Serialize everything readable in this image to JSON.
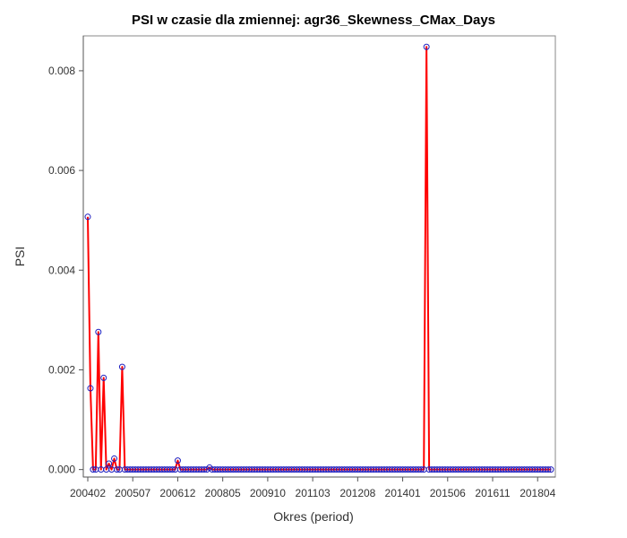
{
  "chart_data": {
    "type": "line",
    "title": "PSI w czasie dla zmiennej: agr36_Skewness_CMax_Days",
    "xlabel": "Okres (period)",
    "ylabel": "PSI",
    "ylim": [
      -0.00015,
      0.0087
    ],
    "yticks": [
      "0.000",
      "0.002",
      "0.004",
      "0.006",
      "0.008"
    ],
    "ytick_values": [
      0,
      0.002,
      0.004,
      0.006,
      0.008
    ],
    "xticks": [
      "200402",
      "200507",
      "200612",
      "200805",
      "200910",
      "201103",
      "201208",
      "201401",
      "201506",
      "201611",
      "201804"
    ],
    "xtick_index": [
      0,
      17,
      34,
      51,
      68,
      85,
      102,
      119,
      136,
      153,
      170
    ],
    "x_start_period": "200402",
    "grid": false,
    "colors": {
      "line": "#ff0000",
      "marker": "#1f1fbf",
      "frame": "#888888",
      "axis": "#555555"
    },
    "series": [
      {
        "values": [
          0.00507,
          0.00163,
          0,
          0,
          0.00276,
          0,
          0.00184,
          0,
          0.00012,
          0,
          0.00022,
          0,
          0,
          0.00206,
          0,
          0,
          0,
          0,
          0,
          0,
          0,
          0,
          0,
          0,
          0,
          0,
          0,
          0,
          0,
          0,
          0,
          0,
          0,
          0,
          0.00018,
          0,
          0,
          0,
          0,
          0,
          0,
          0,
          0,
          0,
          0,
          0,
          4e-05,
          0,
          0,
          0,
          0,
          0,
          0,
          0,
          0,
          0,
          0,
          0,
          0,
          0,
          0,
          0,
          0,
          0,
          0,
          0,
          0,
          0,
          0,
          0,
          0,
          0,
          0,
          0,
          0,
          0,
          0,
          0,
          0,
          0,
          0,
          0,
          0,
          0,
          0,
          0,
          0,
          0,
          0,
          0,
          0,
          0,
          0,
          0,
          0,
          0,
          0,
          0,
          0,
          0,
          0,
          0,
          0,
          0,
          0,
          0,
          0,
          0,
          0,
          0,
          0,
          0,
          0,
          0,
          0,
          0,
          0,
          0,
          0,
          0,
          0,
          0,
          0,
          0,
          0,
          0,
          0,
          0,
          0.00848,
          0,
          0,
          0,
          0,
          0,
          0,
          0,
          0,
          0,
          0,
          0,
          0,
          0,
          0,
          0,
          0,
          0,
          0,
          0,
          0,
          0,
          0,
          0,
          0,
          0,
          0,
          0,
          0,
          0,
          0,
          0,
          0,
          0,
          0,
          0,
          0,
          0,
          0,
          0,
          0,
          0,
          0,
          0,
          0,
          0,
          0,
          0
        ]
      }
    ]
  }
}
